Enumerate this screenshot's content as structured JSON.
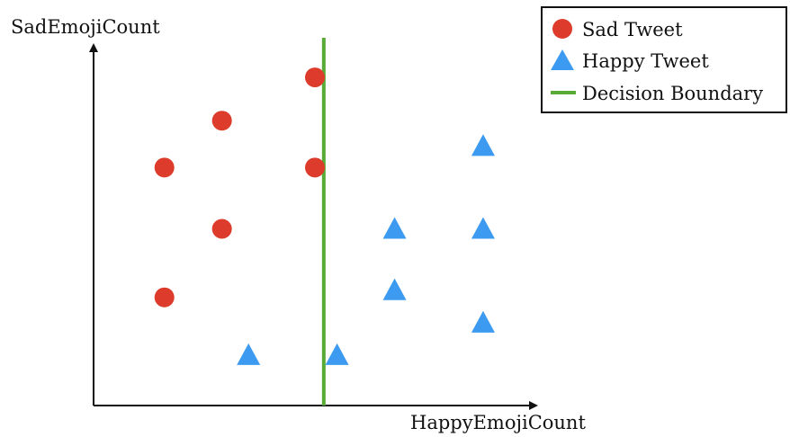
{
  "chart_data": {
    "type": "scatter",
    "title": "",
    "xlabel": "HappyEmojiCount",
    "ylabel": "SadEmojiCount",
    "xlim": [
      0,
      10
    ],
    "ylim": [
      0,
      10
    ],
    "grid": false,
    "tick_labels": false,
    "legend_position": "top-right",
    "series": [
      {
        "name": "Sad Tweet",
        "marker": "circle",
        "color": "#dd3b2b",
        "points": [
          [
            5.0,
            9.1
          ],
          [
            2.9,
            7.9
          ],
          [
            1.6,
            6.6
          ],
          [
            5.0,
            6.6
          ],
          [
            2.9,
            4.9
          ],
          [
            1.6,
            3.0
          ]
        ]
      },
      {
        "name": "Happy Tweet",
        "marker": "triangle",
        "color": "#3c9bf0",
        "points": [
          [
            8.8,
            7.2
          ],
          [
            6.8,
            4.9
          ],
          [
            8.8,
            4.9
          ],
          [
            6.8,
            3.2
          ],
          [
            8.8,
            2.3
          ],
          [
            3.5,
            1.4
          ],
          [
            5.5,
            1.4
          ]
        ]
      }
    ],
    "decision_boundary": {
      "name": "Decision Boundary",
      "color": "#57ab36",
      "x": 5.2
    }
  }
}
